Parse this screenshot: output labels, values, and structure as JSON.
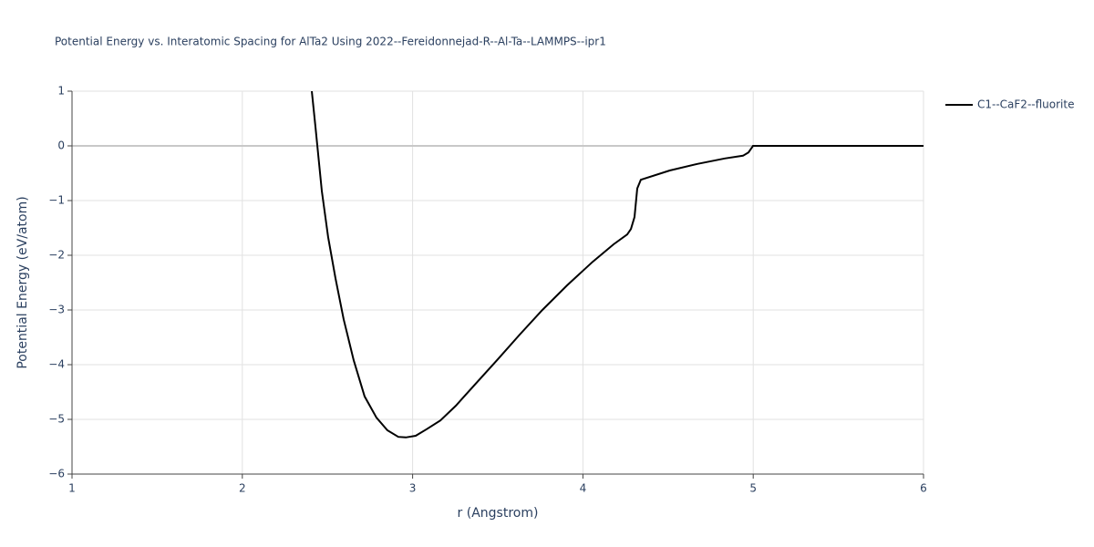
{
  "chart_data": {
    "type": "line",
    "title": "Potential Energy vs. Interatomic Spacing for AlTa2 Using 2022--Fereidonnejad-R--Al-Ta--LAMMPS--ipr1",
    "x_label": "r (Angstrom)",
    "y_label": "Potential Energy (eV/atom)",
    "x": [
      2.408,
      2.43,
      2.467,
      2.504,
      2.547,
      2.595,
      2.654,
      2.718,
      2.788,
      2.852,
      2.916,
      2.96,
      3.018,
      3.082,
      3.163,
      3.254,
      3.361,
      3.495,
      3.629,
      3.762,
      3.907,
      4.057,
      4.18,
      4.26,
      4.282,
      4.303,
      4.319,
      4.34,
      4.51,
      4.672,
      4.833,
      4.94,
      4.972,
      4.999,
      6.0
    ],
    "series": [
      {
        "name": "C1--CaF2--fluorite",
        "color": "#000000",
        "values": [
          1.0,
          0.33,
          -0.83,
          -1.67,
          -2.42,
          -3.17,
          -3.92,
          -4.58,
          -4.97,
          -5.2,
          -5.32,
          -5.33,
          -5.3,
          -5.18,
          -5.02,
          -4.75,
          -4.38,
          -3.92,
          -3.45,
          -3.0,
          -2.55,
          -2.12,
          -1.8,
          -1.62,
          -1.52,
          -1.3,
          -0.78,
          -0.62,
          -0.45,
          -0.33,
          -0.23,
          -0.18,
          -0.12,
          0,
          0
        ]
      }
    ],
    "xlim": [
      1,
      6
    ],
    "xticks": [
      1,
      2,
      3,
      4,
      5,
      6
    ],
    "ylim": [
      -6,
      1
    ],
    "yticks": [
      {
        "value": -6,
        "label": "−6"
      },
      {
        "value": -5,
        "label": "−5"
      },
      {
        "value": -4,
        "label": "−4"
      },
      {
        "value": -3,
        "label": "−3"
      },
      {
        "value": -2,
        "label": "−2"
      },
      {
        "value": -1,
        "label": "−1"
      },
      0,
      1
    ],
    "grid": true,
    "legend": "right"
  }
}
